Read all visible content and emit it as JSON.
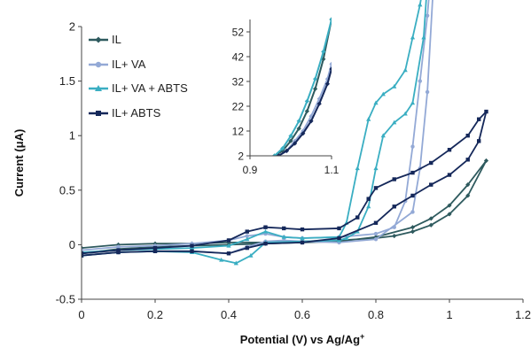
{
  "chart_data": [
    {
      "type": "line",
      "xlabel_parts": [
        "Potential (V) vs Ag/Ag",
        "+"
      ],
      "ylabel": "Current (μA)",
      "xlim": [
        0,
        1.2
      ],
      "ylim": [
        -0.5,
        2
      ],
      "x_ticks": [
        "0",
        "0.2",
        "0.4",
        "0.6",
        "0.8",
        "1",
        "1.2"
      ],
      "y_ticks": [
        "-0.5",
        "0",
        "0.5",
        "1",
        "1.5",
        "2"
      ],
      "x_tick_values": [
        0,
        0.2,
        0.4,
        0.6,
        0.8,
        1,
        1.2
      ],
      "y_tick_values": [
        -0.5,
        0,
        0.5,
        1,
        1.5,
        2
      ],
      "grid": false,
      "legend_position": "top-left",
      "series": [
        {
          "name": "IL",
          "color": "#2e5a5e",
          "marker": "diamond",
          "x": [
            0,
            0.1,
            0.2,
            0.3,
            0.4,
            0.5,
            0.6,
            0.7,
            0.8,
            0.85,
            0.9,
            0.95,
            1.0,
            1.05,
            1.1,
            1.05,
            1.0,
            0.95,
            0.9,
            0.8,
            0.7,
            0.6,
            0.5,
            0.4,
            0.3,
            0.2,
            0.1,
            0
          ],
          "y": [
            -0.03,
            0.0,
            0.01,
            0.01,
            0.02,
            0.02,
            0.03,
            0.04,
            0.06,
            0.08,
            0.12,
            0.18,
            0.28,
            0.45,
            0.77,
            0.55,
            0.36,
            0.24,
            0.16,
            0.07,
            0.03,
            0.02,
            0.01,
            0.0,
            -0.01,
            -0.02,
            -0.04,
            -0.08
          ]
        },
        {
          "name": "IL+ VA",
          "color": "#93a9d6",
          "marker": "circle",
          "x": [
            0,
            0.1,
            0.2,
            0.3,
            0.4,
            0.45,
            0.5,
            0.55,
            0.6,
            0.7,
            0.8,
            0.85,
            0.88,
            0.9,
            0.92,
            0.94,
            0.95,
            0.96,
            0.94,
            0.92,
            0.9,
            0.8,
            0.7,
            0.6,
            0.55,
            0.5,
            0.45,
            0.4,
            0.3,
            0.2,
            0.1,
            0
          ],
          "y": [
            -0.05,
            -0.02,
            -0.01,
            0.01,
            0.04,
            0.08,
            0.1,
            0.07,
            0.06,
            0.07,
            0.1,
            0.16,
            0.4,
            0.9,
            1.5,
            2.1,
            2.5,
            2.6,
            1.4,
            0.7,
            0.3,
            0.05,
            0.02,
            0.03,
            0.04,
            0.03,
            -0.02,
            -0.08,
            -0.06,
            -0.06,
            -0.07,
            -0.1
          ]
        },
        {
          "name": "IL+ VA + ABTS",
          "color": "#3aaec2",
          "marker": "triangle",
          "x": [
            0,
            0.1,
            0.2,
            0.3,
            0.4,
            0.45,
            0.5,
            0.55,
            0.6,
            0.7,
            0.72,
            0.75,
            0.78,
            0.8,
            0.82,
            0.85,
            0.88,
            0.9,
            0.92,
            0.94,
            0.95,
            0.93,
            0.9,
            0.88,
            0.85,
            0.82,
            0.8,
            0.78,
            0.75,
            0.72,
            0.7,
            0.6,
            0.5,
            0.46,
            0.42,
            0.38,
            0.3,
            0.2,
            0.1,
            0
          ],
          "y": [
            -0.07,
            -0.05,
            -0.04,
            -0.03,
            -0.01,
            0.05,
            0.12,
            0.07,
            0.06,
            0.07,
            0.2,
            0.7,
            1.15,
            1.3,
            1.38,
            1.45,
            1.6,
            1.9,
            2.2,
            2.6,
            2.9,
            1.9,
            1.3,
            1.2,
            1.12,
            1.0,
            0.7,
            0.35,
            0.12,
            0.06,
            0.04,
            0.03,
            0.02,
            -0.1,
            -0.17,
            -0.14,
            -0.07,
            -0.06,
            -0.07,
            -0.1
          ]
        },
        {
          "name": "IL+ ABTS",
          "color": "#15285a",
          "marker": "square",
          "x": [
            0,
            0.1,
            0.2,
            0.3,
            0.4,
            0.45,
            0.5,
            0.55,
            0.6,
            0.7,
            0.75,
            0.78,
            0.8,
            0.85,
            0.9,
            0.95,
            1.0,
            1.05,
            1.08,
            1.1,
            1.08,
            1.05,
            1.0,
            0.95,
            0.9,
            0.85,
            0.8,
            0.7,
            0.6,
            0.5,
            0.45,
            0.4,
            0.3,
            0.2,
            0.1,
            0
          ],
          "y": [
            -0.08,
            -0.05,
            -0.03,
            -0.01,
            0.04,
            0.12,
            0.16,
            0.15,
            0.14,
            0.15,
            0.25,
            0.42,
            0.52,
            0.6,
            0.66,
            0.75,
            0.87,
            1.0,
            1.15,
            1.22,
            0.95,
            0.78,
            0.64,
            0.55,
            0.45,
            0.35,
            0.2,
            0.06,
            0.02,
            0.01,
            -0.03,
            -0.08,
            -0.06,
            -0.06,
            -0.07,
            -0.1
          ]
        }
      ]
    },
    {
      "type": "line",
      "role": "inset",
      "xlabel": "",
      "ylabel": "",
      "xlim": [
        0.9,
        1.1
      ],
      "ylim": [
        2,
        57
      ],
      "x_ticks": [
        "0.9",
        "1.1"
      ],
      "y_ticks": [
        "2",
        "12",
        "22",
        "32",
        "42",
        "52"
      ],
      "x_tick_values": [
        0.9,
        1.1
      ],
      "y_tick_values": [
        2,
        12,
        22,
        32,
        42,
        52
      ],
      "grid": false,
      "series": [
        {
          "name": "IL",
          "color": "#2e5a5e",
          "x": [
            0.96,
            0.98,
            1.0,
            1.02,
            1.04,
            1.06,
            1.08,
            1.1
          ],
          "y": [
            2,
            4,
            8,
            13,
            20,
            29,
            41,
            57
          ]
        },
        {
          "name": "IL+ VA",
          "color": "#93a9d6",
          "x": [
            0.97,
            0.99,
            1.01,
            1.03,
            1.05,
            1.07,
            1.09,
            1.1
          ],
          "y": [
            2,
            4,
            8,
            12,
            18,
            25,
            33,
            39
          ]
        },
        {
          "name": "IL+ VA + ABTS",
          "color": "#3aaec2",
          "x": [
            0.96,
            0.98,
            1.0,
            1.02,
            1.04,
            1.06,
            1.08,
            1.1
          ],
          "y": [
            2,
            5,
            10,
            16,
            24,
            33,
            44,
            57
          ]
        },
        {
          "name": "IL+ ABTS",
          "color": "#15285a",
          "x": [
            0.97,
            0.99,
            1.01,
            1.03,
            1.05,
            1.07,
            1.09,
            1.1
          ],
          "y": [
            2,
            4,
            7,
            11,
            16,
            23,
            31,
            37
          ]
        }
      ]
    }
  ]
}
